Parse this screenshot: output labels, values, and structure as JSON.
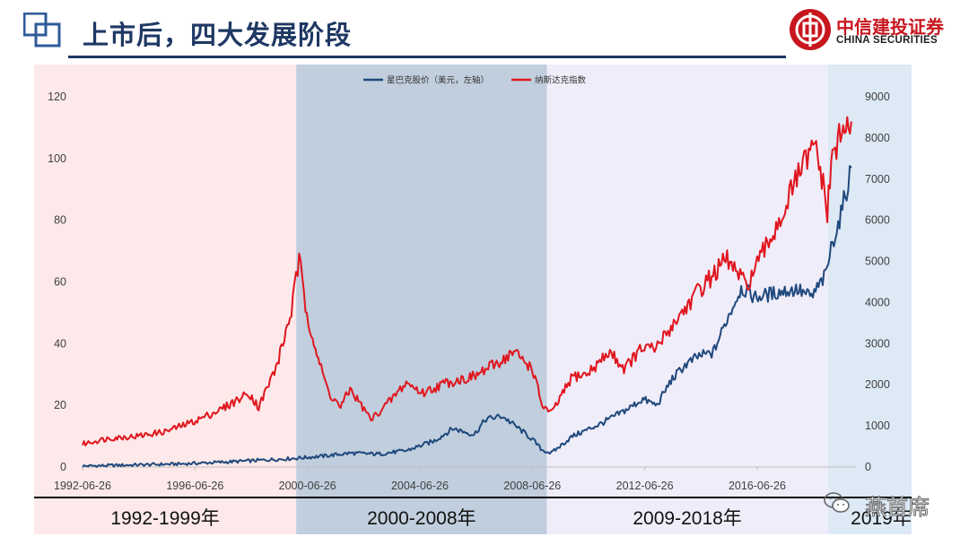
{
  "header": {
    "title": "上市后，四大发展阶段"
  },
  "brand": {
    "name_cn": "中信建投证券",
    "name_en": "CHINA SECURITIES",
    "color": "#c8161e"
  },
  "watermark": {
    "text": "燕首席",
    "icon": "wechat-icon"
  },
  "stages": [
    {
      "label": "1992-1999年",
      "from": "1992-06-26",
      "to": "2000-02-01",
      "color": "#fde9e9"
    },
    {
      "label": "2000-2008年",
      "from": "2000-02-01",
      "to": "2009-01-01",
      "color": "#c0cedd"
    },
    {
      "label": "2009-2018年",
      "from": "2009-01-01",
      "to": "2018-12-31",
      "color": "#f0edfa"
    },
    {
      "label": "2019年",
      "from": "2018-12-31",
      "to": "2019-12-31",
      "color": "#dde9f5"
    }
  ],
  "chart_data": {
    "type": "line",
    "x_type": "date",
    "x_range": [
      "1992-06-26",
      "2019-12-31"
    ],
    "x_ticks": [
      "1992-06-26",
      "1996-06-26",
      "2000-06-26",
      "2004-06-26",
      "2008-06-26",
      "2012-06-26",
      "2016-06-26"
    ],
    "y_left": {
      "min": 0,
      "max": 120,
      "ticks": [
        0,
        20,
        40,
        60,
        80,
        100,
        120
      ]
    },
    "y_right": {
      "min": 0,
      "max": 9000,
      "ticks": [
        0,
        1000,
        2000,
        3000,
        4000,
        5000,
        6000,
        7000,
        8000,
        9000
      ]
    },
    "legend_position": "top-center",
    "series": [
      {
        "name": "星巴克股价（美元，左轴）",
        "axis": "left",
        "color": "#1f497d",
        "x": [
          "1992-06-26",
          "1994-01-01",
          "1996-01-01",
          "1998-01-01",
          "1999-06-01",
          "2000-01-01",
          "2001-01-01",
          "2002-01-01",
          "2003-01-01",
          "2004-01-01",
          "2005-01-01",
          "2005-09-01",
          "2006-06-01",
          "2006-11-01",
          "2007-06-01",
          "2008-01-01",
          "2008-06-26",
          "2008-11-01",
          "2009-03-01",
          "2009-12-01",
          "2010-12-01",
          "2011-12-01",
          "2012-06-01",
          "2012-12-01",
          "2013-06-01",
          "2013-12-01",
          "2014-06-01",
          "2014-12-01",
          "2015-06-01",
          "2015-12-01",
          "2016-06-01",
          "2016-12-01",
          "2017-06-01",
          "2017-12-01",
          "2018-06-01",
          "2018-12-01",
          "2019-03-01",
          "2019-06-01",
          "2019-09-01",
          "2019-11-01"
        ],
        "values": [
          0.3,
          0.6,
          1.0,
          1.8,
          2.5,
          2.8,
          3.5,
          4.5,
          4.2,
          5.3,
          8.5,
          12.5,
          10.5,
          15.5,
          16.5,
          12.5,
          9.0,
          5.5,
          4.5,
          10.0,
          14.0,
          19.0,
          22.0,
          20.0,
          28.0,
          33.0,
          36.0,
          37.0,
          48.0,
          58.0,
          55.0,
          56.0,
          57.0,
          57.5,
          55.0,
          62.0,
          73.0,
          80.0,
          90.0,
          97.0
        ]
      },
      {
        "name": "纳斯达克指数",
        "axis": "right",
        "color": "#e0161e",
        "x": [
          "1992-06-26",
          "1993-06-01",
          "1994-06-01",
          "1995-06-01",
          "1996-06-01",
          "1997-06-01",
          "1998-06-01",
          "1998-10-01",
          "1999-06-01",
          "1999-12-01",
          "2000-03-10",
          "2000-06-01",
          "2000-12-01",
          "2001-04-01",
          "2001-09-01",
          "2002-01-01",
          "2002-10-01",
          "2003-06-01",
          "2004-01-01",
          "2004-08-01",
          "2005-06-01",
          "2006-06-01",
          "2007-06-01",
          "2007-10-31",
          "2008-06-26",
          "2008-11-01",
          "2009-03-01",
          "2009-12-01",
          "2010-06-01",
          "2011-04-01",
          "2011-10-01",
          "2012-06-01",
          "2012-11-01",
          "2013-06-01",
          "2014-06-01",
          "2015-06-01",
          "2016-02-01",
          "2016-06-26",
          "2017-06-01",
          "2018-01-01",
          "2018-08-01",
          "2018-12-24",
          "2019-03-01",
          "2019-07-01",
          "2019-11-01"
        ],
        "values": [
          560,
          700,
          750,
          860,
          1100,
          1400,
          1800,
          1450,
          2500,
          3800,
          5050,
          3900,
          2500,
          1800,
          1450,
          1900,
          1150,
          1600,
          2050,
          1800,
          2050,
          2200,
          2600,
          2800,
          2400,
          1500,
          1300,
          2200,
          2250,
          2800,
          2400,
          2900,
          2850,
          3400,
          4300,
          5050,
          4400,
          4900,
          6200,
          7200,
          7800,
          6200,
          7600,
          8100,
          8400
        ]
      }
    ]
  }
}
